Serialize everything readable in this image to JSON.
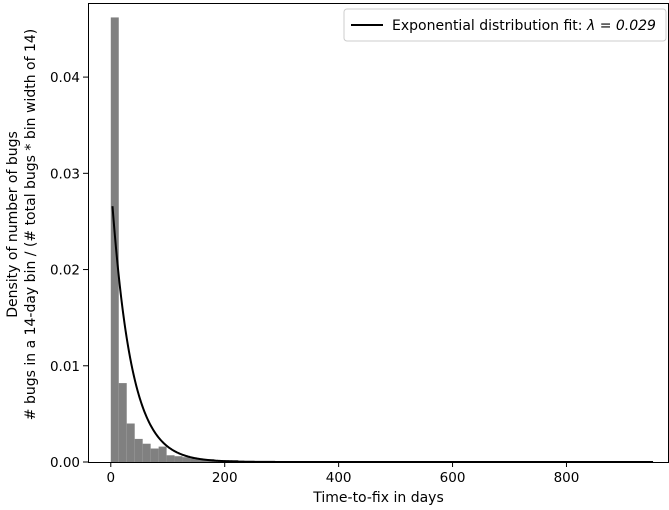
{
  "chart_data": {
    "type": "bar",
    "title": "",
    "xlabel": "Time-to-fix in days",
    "ylabel_line1": "Density of number of bugs",
    "ylabel_line2": "# bugs in a 14-day bin / (# total bugs * bin width of 14)",
    "xlim": [
      -40,
      980
    ],
    "ylim": [
      0,
      0.0477
    ],
    "x_ticks": [
      0,
      200,
      400,
      600,
      800
    ],
    "x_tick_labels": [
      "0",
      "200",
      "400",
      "600",
      "800"
    ],
    "y_ticks": [
      0.0,
      0.01,
      0.02,
      0.03,
      0.04
    ],
    "y_tick_labels": [
      "0.00",
      "0.01",
      "0.02",
      "0.03",
      "0.04"
    ],
    "bin_width": 14,
    "histogram": {
      "color": "#808080",
      "bins": [
        {
          "x0": 0,
          "density": 0.0462
        },
        {
          "x0": 14,
          "density": 0.0082
        },
        {
          "x0": 28,
          "density": 0.004
        },
        {
          "x0": 42,
          "density": 0.0024
        },
        {
          "x0": 56,
          "density": 0.0019
        },
        {
          "x0": 70,
          "density": 0.0014
        },
        {
          "x0": 84,
          "density": 0.0016
        },
        {
          "x0": 98,
          "density": 0.0007
        },
        {
          "x0": 112,
          "density": 0.0006
        },
        {
          "x0": 126,
          "density": 0.0005
        },
        {
          "x0": 140,
          "density": 0.0004
        },
        {
          "x0": 154,
          "density": 0.0003
        },
        {
          "x0": 168,
          "density": 0.0003
        },
        {
          "x0": 182,
          "density": 0.0002
        },
        {
          "x0": 196,
          "density": 0.0002
        },
        {
          "x0": 210,
          "density": 0.0002
        },
        {
          "x0": 224,
          "density": 0.0001
        },
        {
          "x0": 238,
          "density": 0.0001
        },
        {
          "x0": 252,
          "density": 0.0001
        },
        {
          "x0": 266,
          "density": 0.0001
        },
        {
          "x0": 280,
          "density": 5e-05
        },
        {
          "x0": 294,
          "density": 5e-05
        },
        {
          "x0": 308,
          "density": 4e-05
        },
        {
          "x0": 322,
          "density": 3e-05
        },
        {
          "x0": 350,
          "density": 3e-05
        },
        {
          "x0": 392,
          "density": 2e-05
        },
        {
          "x0": 448,
          "density": 2e-05
        },
        {
          "x0": 504,
          "density": 1e-05
        },
        {
          "x0": 574,
          "density": 1e-05
        },
        {
          "x0": 644,
          "density": 1e-05
        },
        {
          "x0": 742,
          "density": 1e-05
        },
        {
          "x0": 840,
          "density": 1e-05
        },
        {
          "x0": 938,
          "density": 1e-05
        }
      ]
    },
    "series": [
      {
        "name": "Exponential distribution fit: λ = 0.029",
        "legend_label_text": "Exponential distribution fit: ",
        "legend_label_math": "λ = 0.029",
        "lambda": 0.029,
        "x_start": 3,
        "x_end": 952,
        "color": "#000000"
      }
    ],
    "legend_position": "upper right",
    "grid": false
  }
}
